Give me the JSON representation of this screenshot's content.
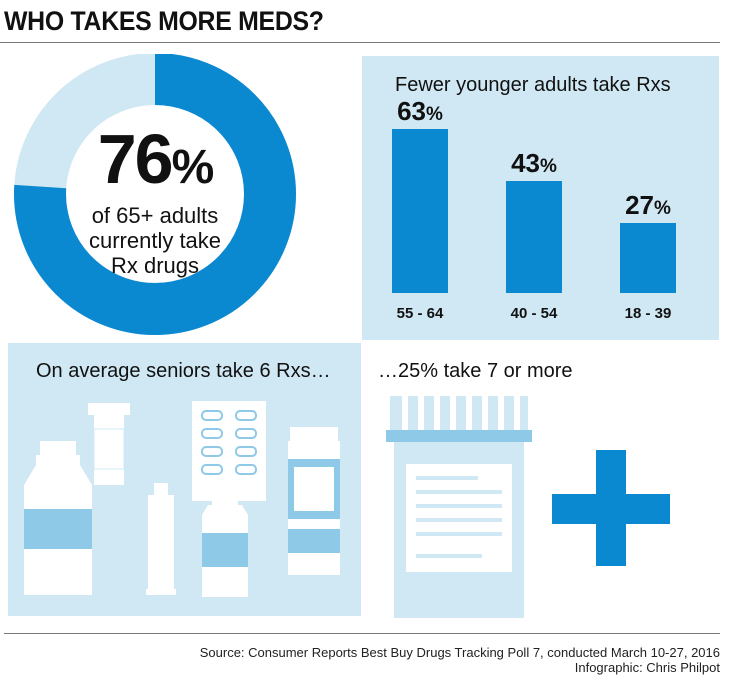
{
  "header": {
    "title": "WHO TAKES MORE MEDS?"
  },
  "donut": {
    "value": 76,
    "value_text": "76",
    "pct_sign": "%",
    "line1": "of 65+ adults",
    "line2": "currently take",
    "line3": "Rx drugs",
    "color_fill": "#0a88d0",
    "color_rest": "#cfe8f3"
  },
  "chart_data": {
    "type": "bar",
    "title": "Fewer younger adults take Rxs",
    "categories": [
      "55 - 64",
      "40 - 54",
      "18 - 39"
    ],
    "values": [
      63,
      43,
      27
    ],
    "value_labels": [
      "63",
      "43",
      "27"
    ],
    "pct_sign": "%",
    "ylim": [
      0,
      100
    ],
    "color": "#0a88d0"
  },
  "seniors": {
    "heading": "On average seniors take 6 Rxs…",
    "more_heading": "…25% take 7 or more"
  },
  "footer": {
    "source": "Source: Consumer Reports Best Buy Drugs Tracking Poll 7, conducted March 10-27, 2016",
    "credit": "Infographic: Chris Philpot"
  }
}
